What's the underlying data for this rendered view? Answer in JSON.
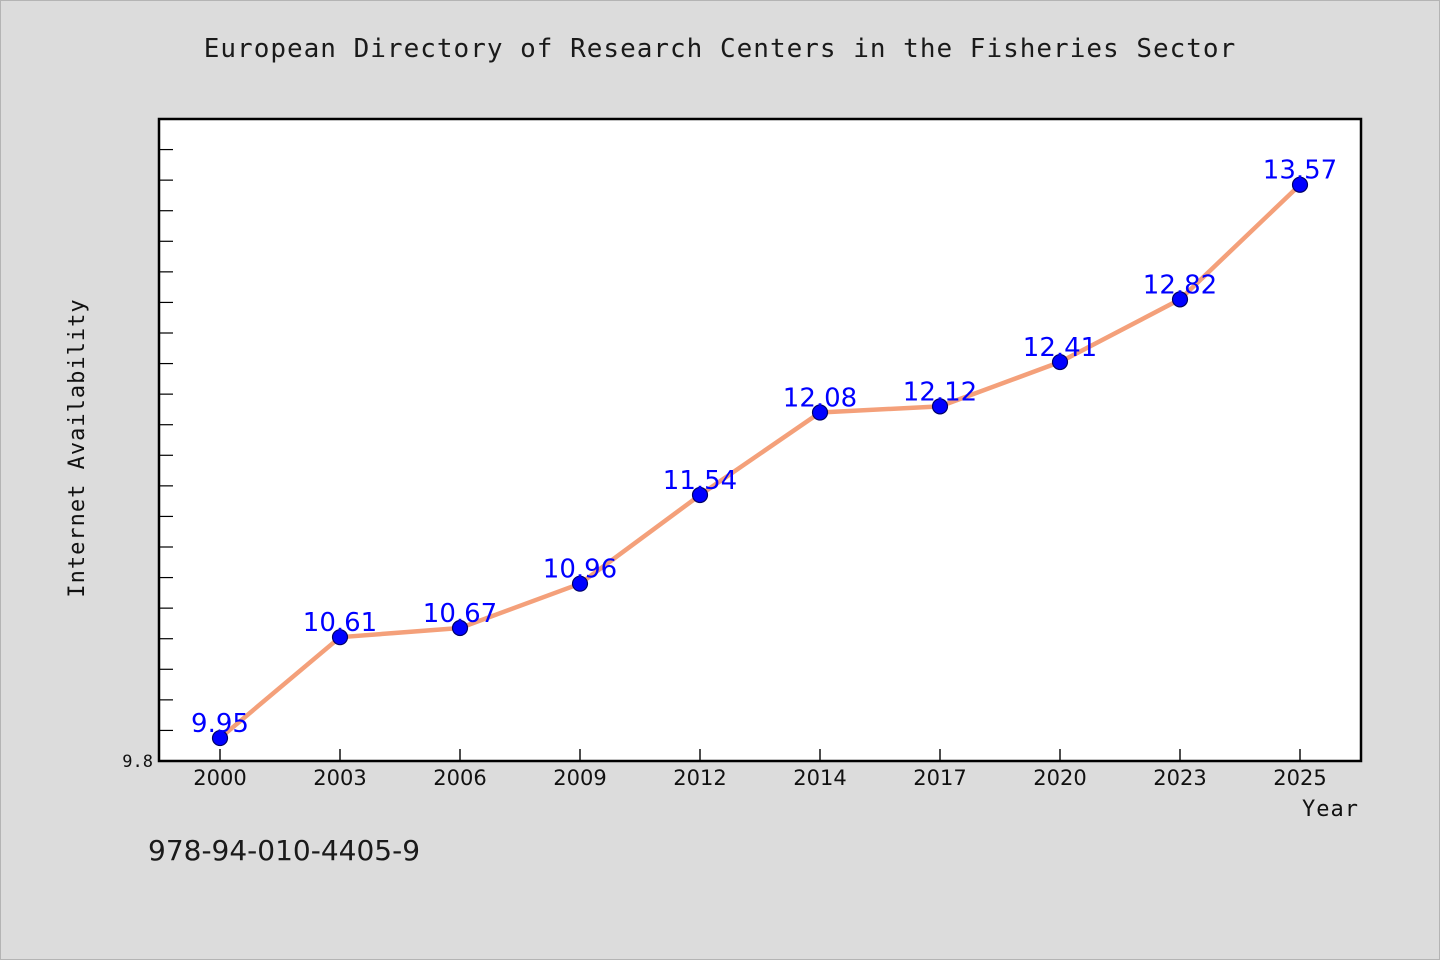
{
  "chart_data": {
    "type": "line",
    "title": "European Directory of Research Centers in the Fisheries Sector",
    "xlabel": "Year",
    "ylabel": "Internet Availability",
    "categories": [
      "2000",
      "2003",
      "2006",
      "2009",
      "2012",
      "2014",
      "2017",
      "2020",
      "2023",
      "2025"
    ],
    "series": [
      {
        "values": [
          9.95,
          10.61,
          10.67,
          10.96,
          11.54,
          12.08,
          12.12,
          12.41,
          12.82,
          13.57
        ],
        "labels": [
          "9.95",
          "10.61",
          "10.67",
          "10.96",
          "11.54",
          "12.08",
          "12.12",
          "12.41",
          "12.82",
          "13.57"
        ]
      }
    ],
    "ylim": [
      9.8,
      14.0
    ],
    "y_tick_labels": [
      "9.8"
    ],
    "y_minor_tick_step": 0.2,
    "grid": false,
    "colors": {
      "line": "#f4a07a",
      "marker": "#0000ff",
      "marker_edge": "#000066",
      "data_label": "#0000ff"
    }
  },
  "footer": {
    "isbn": "978-94-010-4405-9"
  }
}
